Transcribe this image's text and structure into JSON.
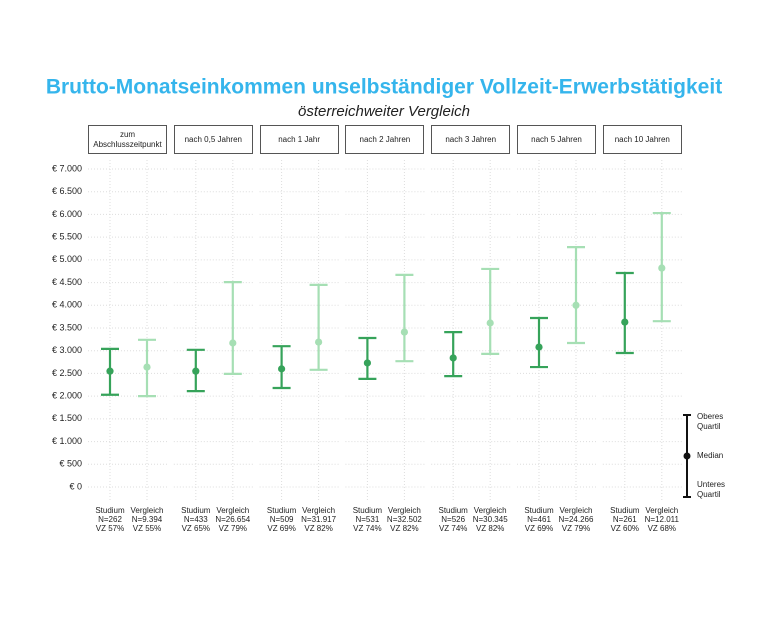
{
  "chart_data": {
    "type": "errorbar",
    "title": "Brutto-Monatseinkommen unselbständiger Vollzeit-Erwerbstätigkeit",
    "subtitle": "österreichweiter Vergleich",
    "facets": [
      "zum Abschlusszeitpunkt",
      "nach 0,5 Jahren",
      "nach 1 Jahr",
      "nach 2 Jahren",
      "nach 3 Jahren",
      "nach 5 Jahren",
      "nach 10 Jahren"
    ],
    "series": [
      {
        "name": "Studium",
        "color": "#36a35a",
        "median": [
          2550,
          2550,
          2600,
          2730,
          2840,
          3080,
          3630
        ],
        "lower": [
          2030,
          2110,
          2180,
          2380,
          2440,
          2640,
          2950
        ],
        "upper": [
          3040,
          3020,
          3100,
          3280,
          3410,
          3720,
          4710
        ],
        "n_labels": [
          "N=262",
          "N=433",
          "N=509",
          "N=531",
          "N=526",
          "N=461",
          "N=261"
        ],
        "vz_labels": [
          "VZ 57%",
          "VZ 65%",
          "VZ 69%",
          "VZ 74%",
          "VZ 74%",
          "VZ 69%",
          "VZ 60%"
        ]
      },
      {
        "name": "Vergleich",
        "color": "#a6dfb4",
        "median": [
          2640,
          3170,
          3190,
          3410,
          3610,
          4000,
          4820
        ],
        "lower": [
          2000,
          2490,
          2580,
          2770,
          2930,
          3170,
          3650
        ],
        "upper": [
          3240,
          4510,
          4450,
          4670,
          4800,
          5280,
          6030
        ],
        "n_labels": [
          "N=9.394",
          "N=26.654",
          "N=31.917",
          "N=32.502",
          "N=30.345",
          "N=24.266",
          "N=12.011"
        ],
        "vz_labels": [
          "VZ 55%",
          "VZ 79%",
          "VZ 82%",
          "VZ 82%",
          "VZ 82%",
          "VZ 79%",
          "VZ 68%"
        ]
      }
    ],
    "ylim": [
      0,
      7000
    ],
    "yticks": [
      {
        "value": 0,
        "label": "€ 0"
      },
      {
        "value": 500,
        "label": "€ 500"
      },
      {
        "value": 1000,
        "label": "€ 1.000"
      },
      {
        "value": 1500,
        "label": "€ 1.500"
      },
      {
        "value": 2000,
        "label": "€ 2.000"
      },
      {
        "value": 2500,
        "label": "€ 2.500"
      },
      {
        "value": 3000,
        "label": "€ 3.000"
      },
      {
        "value": 3500,
        "label": "€ 3.500"
      },
      {
        "value": 4000,
        "label": "€ 4.000"
      },
      {
        "value": 4500,
        "label": "€ 4.500"
      },
      {
        "value": 5000,
        "label": "€ 5.000"
      },
      {
        "value": 5500,
        "label": "€ 5.500"
      },
      {
        "value": 6000,
        "label": "€ 6.000"
      },
      {
        "value": 6500,
        "label": "€ 6.500"
      },
      {
        "value": 7000,
        "label": "€ 7.000"
      }
    ],
    "grid": true,
    "legend": {
      "upper": "Oberes Quartil",
      "median": "Median",
      "lower": "Unteres Quartil"
    }
  }
}
